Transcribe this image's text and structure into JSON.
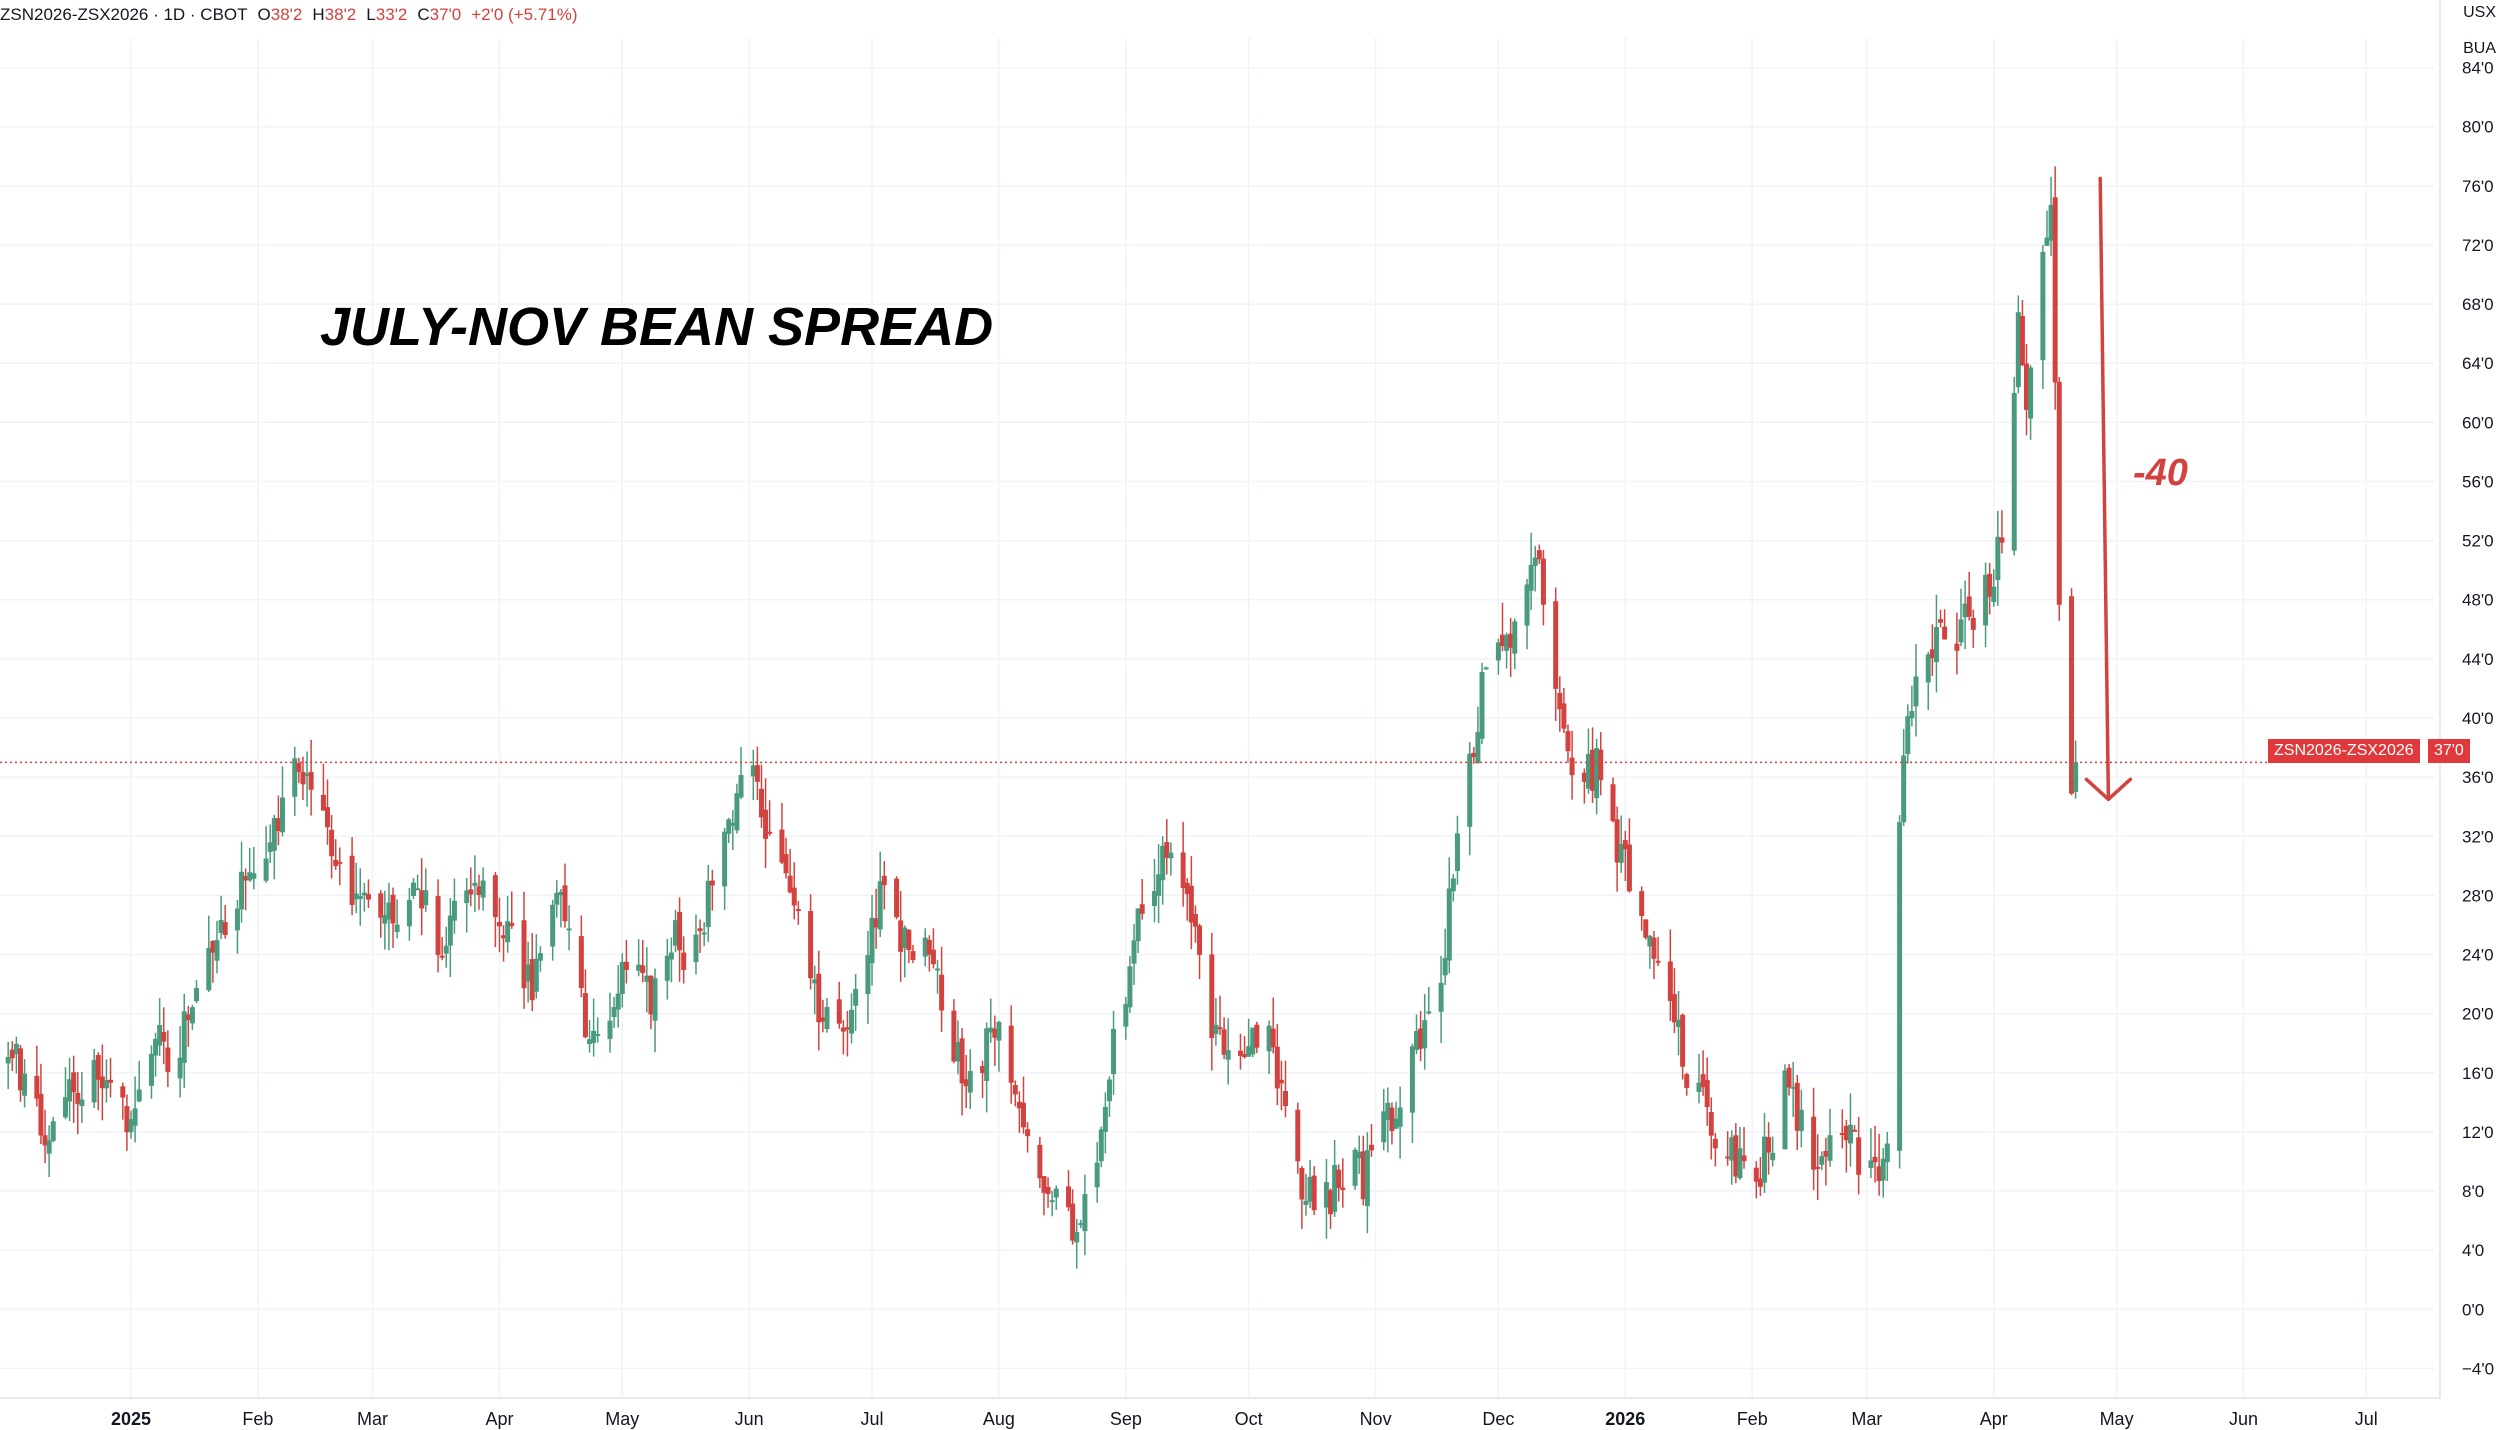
{
  "header": {
    "symbol": "ZSN2026-ZSX2026 · 1D · CBOT",
    "open_label": "O",
    "open": "38'2",
    "high_label": "H",
    "high": "38'2",
    "low_label": "L",
    "low": "33'2",
    "close_label": "C",
    "close": "37'0",
    "change": "+2'0 (+5.71%)"
  },
  "units": {
    "currency": "USX",
    "unit": "BUA"
  },
  "annotation": {
    "title": "JULY-NOV BEAN SPREAD",
    "move": "-40"
  },
  "price_label": {
    "symbol": "ZSN2026-ZSX2026",
    "value": "37'0"
  },
  "colors": {
    "up": "#4a9a7e",
    "down": "#d2433f",
    "grid": "#f0f3fa",
    "text": "#131722"
  },
  "chart_data": {
    "type": "candlestick",
    "title": "JULY-NOV BEAN SPREAD",
    "ylim": [
      -6,
      86
    ],
    "y_ticks": [
      -4,
      0,
      4,
      8,
      12,
      16,
      20,
      24,
      28,
      32,
      36,
      40,
      44,
      48,
      52,
      56,
      60,
      64,
      68,
      72,
      76,
      80,
      84
    ],
    "y_tick_labels": [
      "−4'0",
      "0'0",
      "4'0",
      "8'0",
      "12'0",
      "16'0",
      "20'0",
      "24'0",
      "28'0",
      "32'0",
      "36'0",
      "40'0",
      "44'0",
      "48'0",
      "52'0",
      "56'0",
      "60'0",
      "64'0",
      "68'0",
      "72'0",
      "76'0",
      "80'0",
      "84'0"
    ],
    "x_labels": [
      "2025",
      "Feb",
      "Mar",
      "Apr",
      "May",
      "Jun",
      "Jul",
      "Aug",
      "Sep",
      "Oct",
      "Nov",
      "Dec",
      "2026",
      "Feb",
      "Mar",
      "Apr",
      "May",
      "Jun",
      "Jul"
    ],
    "x_label_bold": [
      true,
      false,
      false,
      false,
      false,
      false,
      false,
      false,
      false,
      false,
      false,
      false,
      true,
      false,
      false,
      false,
      false,
      false,
      false
    ],
    "x_label_day": [
      1,
      32,
      60,
      91,
      121,
      152,
      182,
      213,
      244,
      274,
      305,
      335,
      366,
      397,
      425,
      456,
      486,
      517,
      547
    ],
    "day_range": [
      -31,
      565
    ],
    "last_close": 37,
    "arrow": {
      "from_day": 482,
      "from_y": 76.5,
      "to_day": 484,
      "to_y": 34.5,
      "label": "-40"
    },
    "closes": [
      {
        "d": -31,
        "c": 20
      },
      {
        "d": -28,
        "c": 18
      },
      {
        "d": -25,
        "c": 15
      },
      {
        "d": -21,
        "c": 12
      },
      {
        "d": -18,
        "c": 13
      },
      {
        "d": -14,
        "c": 15
      },
      {
        "d": -10,
        "c": 14
      },
      {
        "d": -7,
        "c": 17
      },
      {
        "d": -4,
        "c": 15
      },
      {
        "d": 0,
        "c": 13
      },
      {
        "d": 4,
        "c": 15
      },
      {
        "d": 8,
        "c": 18
      },
      {
        "d": 11,
        "c": 16
      },
      {
        "d": 15,
        "c": 20
      },
      {
        "d": 18,
        "c": 22
      },
      {
        "d": 22,
        "c": 24
      },
      {
        "d": 25,
        "c": 27
      },
      {
        "d": 29,
        "c": 29
      },
      {
        "d": 32,
        "c": 28
      },
      {
        "d": 35,
        "c": 31
      },
      {
        "d": 39,
        "c": 34
      },
      {
        "d": 42,
        "c": 37
      },
      {
        "d": 45,
        "c": 36
      },
      {
        "d": 49,
        "c": 33
      },
      {
        "d": 52,
        "c": 30
      },
      {
        "d": 56,
        "c": 28
      },
      {
        "d": 60,
        "c": 26
      },
      {
        "d": 63,
        "c": 27
      },
      {
        "d": 67,
        "c": 25
      },
      {
        "d": 70,
        "c": 29
      },
      {
        "d": 74,
        "c": 27
      },
      {
        "d": 77,
        "c": 24
      },
      {
        "d": 81,
        "c": 27
      },
      {
        "d": 85,
        "c": 30
      },
      {
        "d": 88,
        "c": 27
      },
      {
        "d": 92,
        "c": 25
      },
      {
        "d": 95,
        "c": 24
      },
      {
        "d": 99,
        "c": 22
      },
      {
        "d": 102,
        "c": 26
      },
      {
        "d": 106,
        "c": 28
      },
      {
        "d": 110,
        "c": 22
      },
      {
        "d": 113,
        "c": 18
      },
      {
        "d": 117,
        "c": 20
      },
      {
        "d": 120,
        "c": 22
      },
      {
        "d": 124,
        "c": 24
      },
      {
        "d": 127,
        "c": 21
      },
      {
        "d": 131,
        "c": 23
      },
      {
        "d": 134,
        "c": 25
      },
      {
        "d": 138,
        "c": 23
      },
      {
        "d": 141,
        "c": 27
      },
      {
        "d": 145,
        "c": 32
      },
      {
        "d": 148,
        "c": 34
      },
      {
        "d": 152,
        "c": 36
      },
      {
        "d": 156,
        "c": 33
      },
      {
        "d": 159,
        "c": 31
      },
      {
        "d": 163,
        "c": 28
      },
      {
        "d": 166,
        "c": 24
      },
      {
        "d": 170,
        "c": 20
      },
      {
        "d": 173,
        "c": 18
      },
      {
        "d": 177,
        "c": 21
      },
      {
        "d": 181,
        "c": 25
      },
      {
        "d": 184,
        "c": 28
      },
      {
        "d": 188,
        "c": 26
      },
      {
        "d": 191,
        "c": 24
      },
      {
        "d": 195,
        "c": 26
      },
      {
        "d": 198,
        "c": 22
      },
      {
        "d": 202,
        "c": 18
      },
      {
        "d": 205,
        "c": 15
      },
      {
        "d": 209,
        "c": 17
      },
      {
        "d": 213,
        "c": 19
      },
      {
        "d": 216,
        "c": 16
      },
      {
        "d": 220,
        "c": 13
      },
      {
        "d": 223,
        "c": 10
      },
      {
        "d": 227,
        "c": 7
      },
      {
        "d": 230,
        "c": 5.5
      },
      {
        "d": 234,
        "c": 7
      },
      {
        "d": 238,
        "c": 12
      },
      {
        "d": 241,
        "c": 18
      },
      {
        "d": 245,
        "c": 23
      },
      {
        "d": 248,
        "c": 27
      },
      {
        "d": 252,
        "c": 30
      },
      {
        "d": 256,
        "c": 30.5
      },
      {
        "d": 259,
        "c": 27
      },
      {
        "d": 263,
        "c": 22
      },
      {
        "d": 266,
        "c": 18
      },
      {
        "d": 270,
        "c": 16
      },
      {
        "d": 273,
        "c": 18
      },
      {
        "d": 277,
        "c": 19
      },
      {
        "d": 280,
        "c": 17
      },
      {
        "d": 284,
        "c": 13
      },
      {
        "d": 287,
        "c": 9
      },
      {
        "d": 291,
        "c": 7
      },
      {
        "d": 294,
        "c": 8
      },
      {
        "d": 298,
        "c": 10
      },
      {
        "d": 302,
        "c": 9
      },
      {
        "d": 305,
        "c": 11
      },
      {
        "d": 309,
        "c": 13
      },
      {
        "d": 312,
        "c": 15
      },
      {
        "d": 316,
        "c": 18
      },
      {
        "d": 320,
        "c": 22
      },
      {
        "d": 323,
        "c": 27
      },
      {
        "d": 327,
        "c": 35
      },
      {
        "d": 331,
        "c": 42
      },
      {
        "d": 334,
        "c": 46
      },
      {
        "d": 338,
        "c": 44
      },
      {
        "d": 341,
        "c": 48
      },
      {
        "d": 345,
        "c": 50
      },
      {
        "d": 348,
        "c": 43
      },
      {
        "d": 352,
        "c": 38
      },
      {
        "d": 355,
        "c": 35
      },
      {
        "d": 359,
        "c": 37
      },
      {
        "d": 362,
        "c": 33
      },
      {
        "d": 366,
        "c": 30
      },
      {
        "d": 370,
        "c": 27
      },
      {
        "d": 373,
        "c": 24
      },
      {
        "d": 377,
        "c": 21
      },
      {
        "d": 380,
        "c": 17
      },
      {
        "d": 384,
        "c": 14
      },
      {
        "d": 388,
        "c": 12
      },
      {
        "d": 391,
        "c": 11
      },
      {
        "d": 395,
        "c": 10
      },
      {
        "d": 398,
        "c": 9
      },
      {
        "d": 402,
        "c": 12
      },
      {
        "d": 405,
        "c": 15
      },
      {
        "d": 409,
        "c": 12
      },
      {
        "d": 412,
        "c": 10
      },
      {
        "d": 416,
        "c": 11
      },
      {
        "d": 420,
        "c": 13
      },
      {
        "d": 423,
        "c": 10
      },
      {
        "d": 427,
        "c": 9
      },
      {
        "d": 430,
        "c": 10
      },
      {
        "d": 432,
        "c": 29
      },
      {
        "d": 434,
        "c": 38
      },
      {
        "d": 436,
        "c": 42
      },
      {
        "d": 438,
        "c": 45
      },
      {
        "d": 441,
        "c": 44
      },
      {
        "d": 443,
        "c": 47
      },
      {
        "d": 446,
        "c": 44
      },
      {
        "d": 448,
        "c": 48
      },
      {
        "d": 451,
        "c": 46
      },
      {
        "d": 453,
        "c": 50
      },
      {
        "d": 456,
        "c": 49
      },
      {
        "d": 458,
        "c": 53
      },
      {
        "d": 460,
        "c": 57
      },
      {
        "d": 462,
        "c": 66
      },
      {
        "d": 464,
        "c": 61
      },
      {
        "d": 466,
        "c": 64
      },
      {
        "d": 468,
        "c": 72
      },
      {
        "d": 470,
        "c": 76
      },
      {
        "d": 472,
        "c": 47
      },
      {
        "d": 474,
        "c": 40
      },
      {
        "d": 475,
        "c": 35
      },
      {
        "d": 476,
        "c": 37
      }
    ]
  }
}
